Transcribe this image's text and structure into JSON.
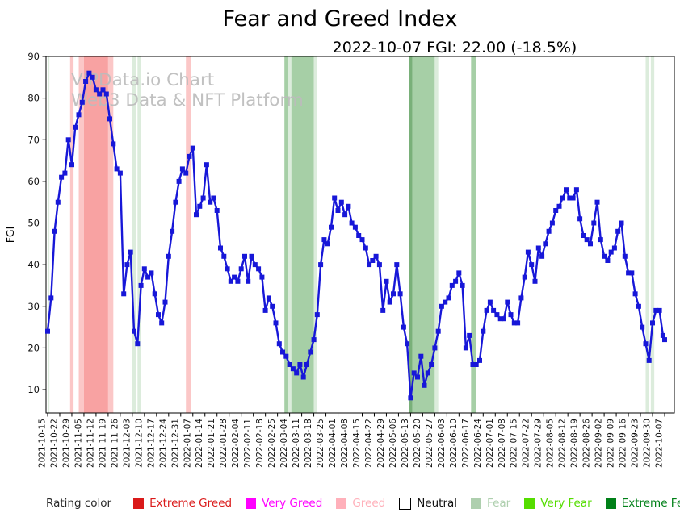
{
  "chart_data": {
    "type": "line",
    "title": "Fear and Greed Index",
    "subtitle": "2022-10-07 FGI: 22.00 (-18.5%)",
    "ylabel": "FGI",
    "ylim": [
      4.4,
      90
    ],
    "yticks": [
      10,
      20,
      30,
      40,
      50,
      60,
      70,
      80,
      90
    ],
    "grid": false,
    "xtick_labels": [
      "2021-10-15",
      "2021-10-22",
      "2021-10-29",
      "2021-11-05",
      "2021-11-12",
      "2021-11-19",
      "2021-11-26",
      "2021-12-03",
      "2021-12-10",
      "2021-12-17",
      "2021-12-24",
      "2021-12-31",
      "2022-01-07",
      "2022-01-14",
      "2022-01-21",
      "2022-01-28",
      "2022-02-04",
      "2022-02-11",
      "2022-02-18",
      "2022-02-25",
      "2022-03-04",
      "2022-03-11",
      "2022-03-18",
      "2022-03-25",
      "2022-04-01",
      "2022-04-08",
      "2022-04-15",
      "2022-04-22",
      "2022-04-29",
      "2022-05-06",
      "2022-05-13",
      "2022-05-20",
      "2022-05-27",
      "2022-06-03",
      "2022-06-10",
      "2022-06-17",
      "2022-06-24",
      "2022-07-01",
      "2022-07-08",
      "2022-07-15",
      "2022-07-22",
      "2022-07-29",
      "2022-08-05",
      "2022-08-12",
      "2022-08-19",
      "2022-08-26",
      "2022-09-02",
      "2022-09-09",
      "2022-09-16",
      "2022-09-23",
      "2022-09-30",
      "2022-10-07"
    ],
    "series": {
      "name": "FGI",
      "color": "#1717d8",
      "marker": "square",
      "start_date": "2021-10-15",
      "sample_interval_days": 2,
      "values": [
        24,
        32,
        48,
        55,
        61,
        62,
        70,
        64,
        73,
        76,
        79,
        84,
        86,
        85,
        82,
        81,
        82,
        81,
        75,
        69,
        63,
        62,
        33,
        40,
        43,
        24,
        21,
        35,
        39,
        37,
        38,
        33,
        28,
        26,
        31,
        42,
        48,
        55,
        60,
        63,
        62,
        66,
        68,
        52,
        54,
        56,
        64,
        55,
        56,
        53,
        44,
        42,
        39,
        36,
        37,
        36,
        39,
        42,
        36,
        42,
        40,
        39,
        37,
        29,
        32,
        30,
        26,
        21,
        19,
        18,
        16,
        15,
        14,
        16,
        13,
        16,
        19,
        22,
        28,
        40,
        46,
        45,
        49,
        56,
        53,
        55,
        52,
        54,
        50,
        49,
        47,
        46,
        44,
        40,
        41,
        42,
        40,
        29,
        36,
        31,
        33,
        40,
        33,
        25,
        21,
        8,
        14,
        13,
        18,
        11,
        14,
        16,
        20,
        24,
        30,
        31,
        32,
        35,
        36,
        38,
        35,
        20,
        23,
        16,
        16,
        17,
        24,
        29,
        31,
        29,
        28,
        27,
        27,
        31,
        28,
        26,
        26,
        32,
        37,
        43,
        40,
        36,
        44,
        42,
        45,
        48,
        50,
        53,
        54,
        56,
        58,
        56,
        56,
        58,
        51,
        47,
        46,
        45,
        50,
        55,
        46,
        42,
        41,
        43,
        44,
        48,
        50,
        42,
        38,
        38,
        33,
        30,
        25,
        21,
        17,
        26,
        29,
        29,
        23
      ],
      "final_point": {
        "date": "2022-10-07",
        "value": 22
      }
    },
    "rating_bands": [
      {
        "start": "2021-10-15",
        "end": "2021-10-16",
        "tone": "fear_light"
      },
      {
        "start": "2021-10-28",
        "end": "2021-10-30",
        "tone": "greed_soft"
      },
      {
        "start": "2021-11-02",
        "end": "2021-11-05",
        "tone": "greed_soft"
      },
      {
        "start": "2021-11-05",
        "end": "2021-11-19",
        "tone": "greed"
      },
      {
        "start": "2021-11-19",
        "end": "2021-11-22",
        "tone": "greed_soft"
      },
      {
        "start": "2021-12-03",
        "end": "2021-12-05",
        "tone": "fear_light"
      },
      {
        "start": "2021-12-06",
        "end": "2021-12-08",
        "tone": "fear_light"
      },
      {
        "start": "2022-01-03",
        "end": "2022-01-06",
        "tone": "greed_soft"
      },
      {
        "start": "2022-03-01",
        "end": "2022-03-03",
        "tone": "fear"
      },
      {
        "start": "2022-03-03",
        "end": "2022-03-05",
        "tone": "fear_light"
      },
      {
        "start": "2022-03-05",
        "end": "2022-03-18",
        "tone": "fear"
      },
      {
        "start": "2022-03-18",
        "end": "2022-03-20",
        "tone": "fear_light"
      },
      {
        "start": "2022-05-12",
        "end": "2022-05-14",
        "tone": "fear_dark"
      },
      {
        "start": "2022-05-14",
        "end": "2022-05-27",
        "tone": "fear"
      },
      {
        "start": "2022-05-27",
        "end": "2022-05-29",
        "tone": "fear_light"
      },
      {
        "start": "2022-06-17",
        "end": "2022-06-20",
        "tone": "fear"
      },
      {
        "start": "2022-09-26",
        "end": "2022-09-28",
        "tone": "fear_light"
      },
      {
        "start": "2022-09-29",
        "end": "2022-10-01",
        "tone": "fear_light"
      }
    ],
    "band_tones": {
      "fear_light": "#dcecdc",
      "fear": "#a6cfa6",
      "fear_dark": "#79b079",
      "greed_soft": "#fbc7c7",
      "greed": "#f8a2a2"
    },
    "legend": {
      "caption": "Rating color",
      "items": [
        {
          "label": "Extreme Greed",
          "swatch": "#da1a1a",
          "text": "#da1a1a"
        },
        {
          "label": "Very Greed",
          "swatch": "#ff00ff",
          "text": "#ff00ff"
        },
        {
          "label": "Greed",
          "swatch": "#ffb0ba",
          "text": "#ffb0ba"
        },
        {
          "label": "Neutral",
          "swatch": "#ffffff",
          "text": "#111111",
          "swatch_border": "#000000"
        },
        {
          "label": "Fear",
          "swatch": "#aecfae",
          "text": "#aecfae"
        },
        {
          "label": "Very Fear",
          "swatch": "#55dd00",
          "text": "#55dd00"
        },
        {
          "label": "Extreme Fear",
          "swatch": "#008018",
          "text": "#008018"
        }
      ]
    }
  },
  "watermark": {
    "line1": "VIPData.io Chart",
    "line2": "Web3 Data & NFT Platform"
  }
}
